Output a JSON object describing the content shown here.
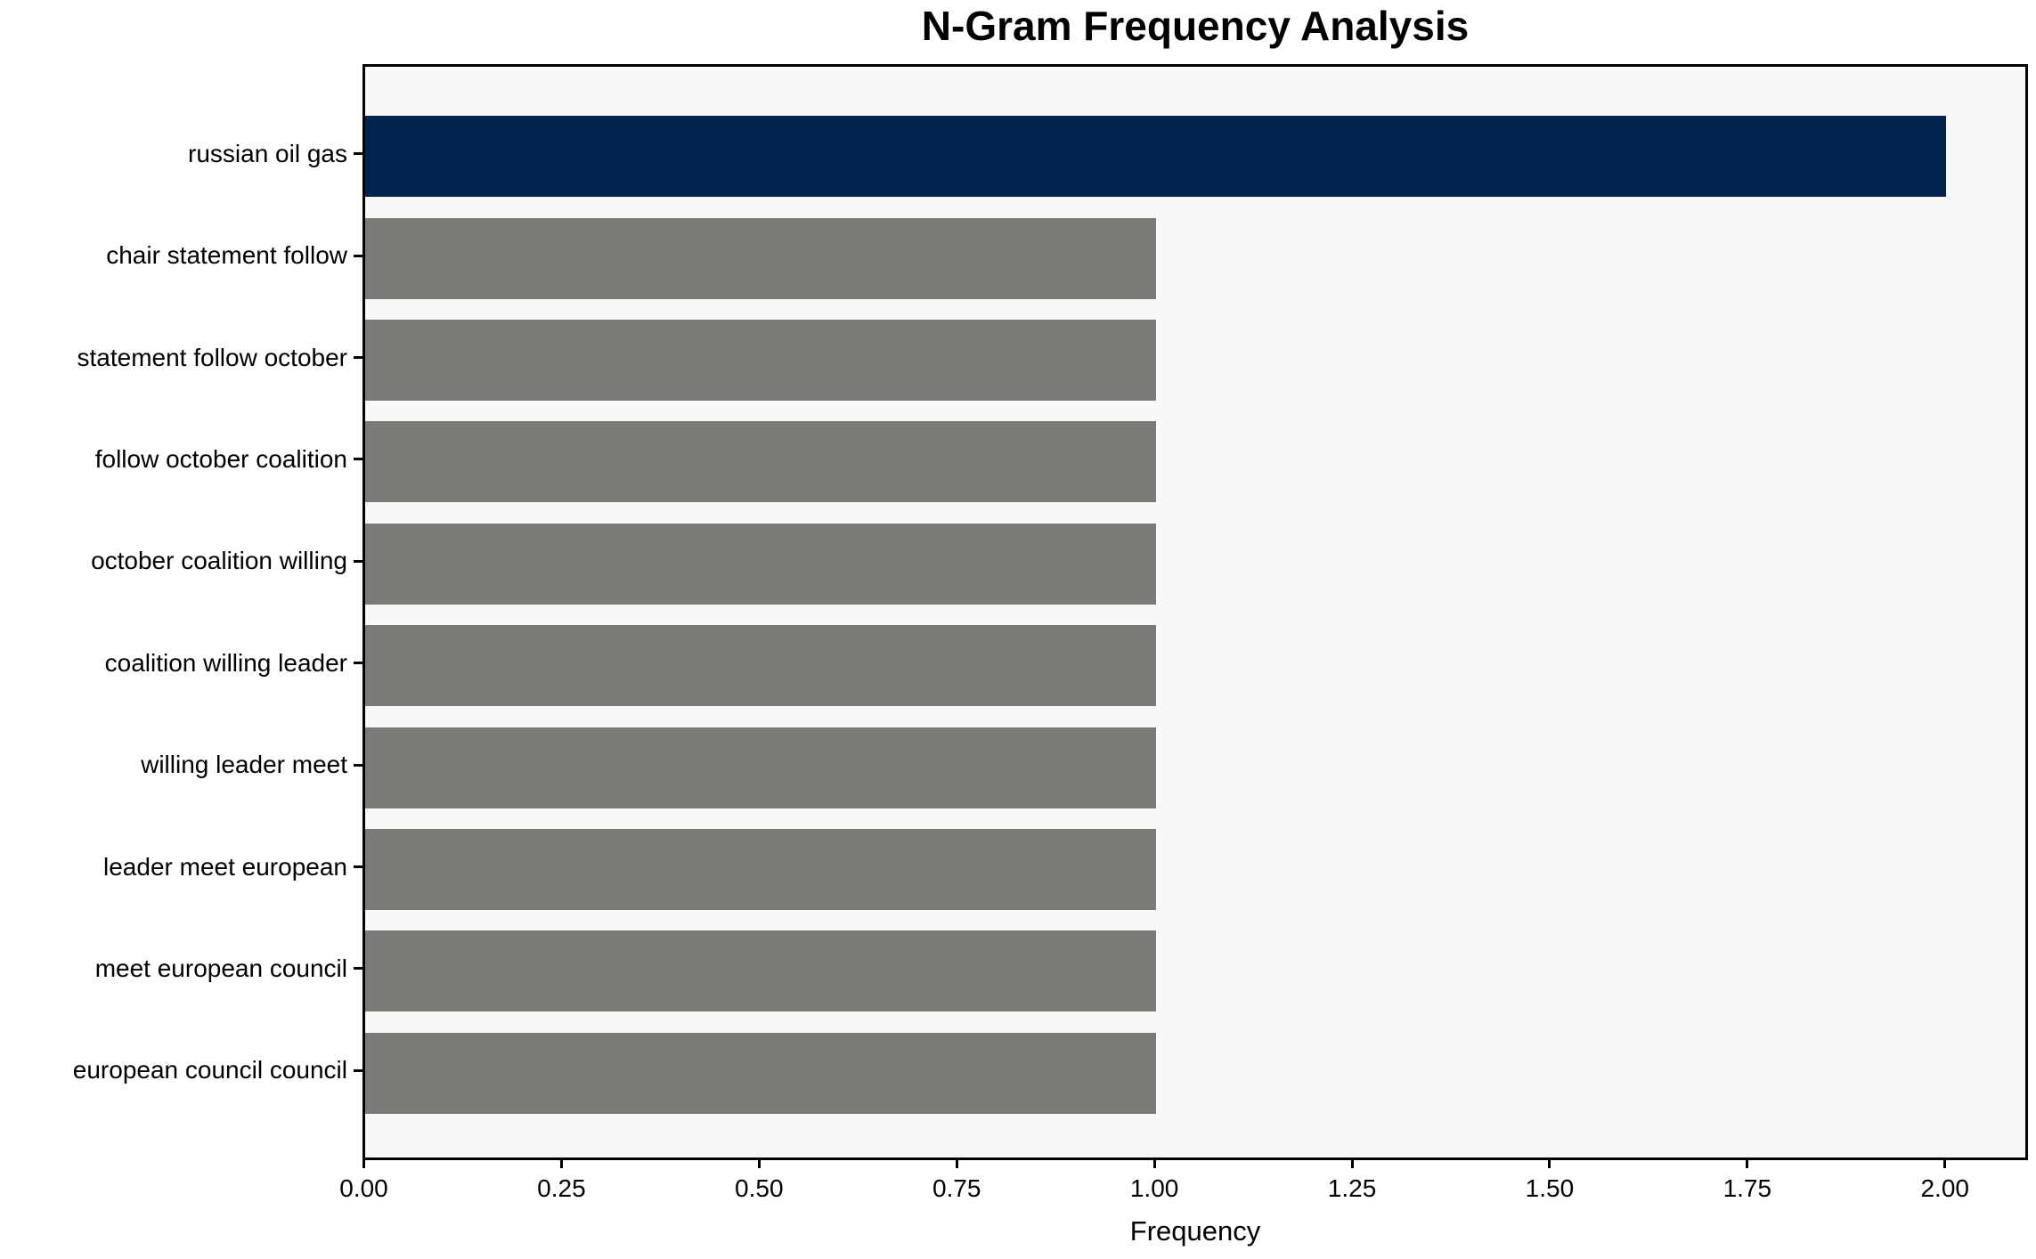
{
  "chart_data": {
    "type": "bar",
    "orientation": "horizontal",
    "title": "N-Gram Frequency Analysis",
    "xlabel": "Frequency",
    "ylabel": "",
    "categories": [
      "russian oil gas",
      "chair statement follow",
      "statement follow october",
      "follow october coalition",
      "october coalition willing",
      "coalition willing leader",
      "willing leader meet",
      "leader meet european",
      "meet european council",
      "european council council"
    ],
    "values": [
      2.0,
      1.0,
      1.0,
      1.0,
      1.0,
      1.0,
      1.0,
      1.0,
      1.0,
      1.0
    ],
    "xlim": [
      0,
      2.1
    ],
    "xticks": [
      "0.00",
      "0.25",
      "0.50",
      "0.75",
      "1.00",
      "1.25",
      "1.50",
      "1.75",
      "2.00"
    ],
    "xtick_values": [
      0,
      0.25,
      0.5,
      0.75,
      1.0,
      1.25,
      1.5,
      1.75,
      2.0
    ],
    "grid": false,
    "legend": null,
    "colors": {
      "highlight_bar": "#02234c",
      "default_bar": "#7b7a77",
      "bar_colors": [
        "#02234c",
        "#7b7a77",
        "#7b7a77",
        "#7b7a77",
        "#7b7a77",
        "#7b7a77",
        "#7b7a77",
        "#7b7a77",
        "#7b7a77",
        "#7b7a77"
      ],
      "plot_background": "#f8f8f8",
      "figure_background": "#ffffff",
      "axis_color": "#000000",
      "text_color": "#000000"
    }
  }
}
